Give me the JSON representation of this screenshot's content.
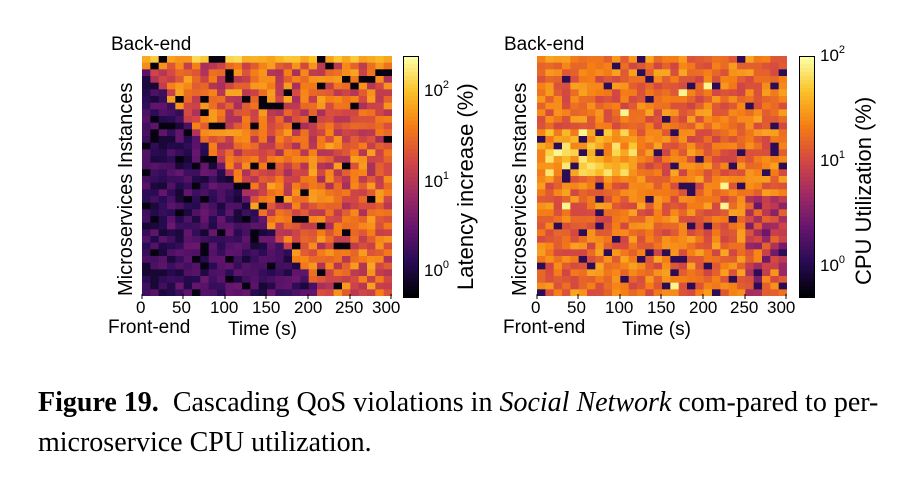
{
  "charts": [
    {
      "top_label": "Back-end",
      "bottom_label": "Front-end",
      "ylabel": "Microservices Instances",
      "xlabel": "Time (s)",
      "xticks": [
        "0",
        "50",
        "100",
        "150",
        "200",
        "250",
        "300"
      ],
      "colorbar_label": "Latency increase (%)",
      "colorbar_ticks": [
        {
          "base": "10",
          "exp": "2"
        },
        {
          "base": "10",
          "exp": "1"
        },
        {
          "base": "10",
          "exp": "0"
        }
      ]
    },
    {
      "top_label": "Back-end",
      "bottom_label": "Front-end",
      "ylabel": "Microservices Instances",
      "xlabel": "Time (s)",
      "xticks": [
        "0",
        "50",
        "100",
        "150",
        "200",
        "250",
        "300"
      ],
      "colorbar_label": "CPU Utilization (%)",
      "colorbar_ticks": [
        {
          "base": "10",
          "exp": "2"
        },
        {
          "base": "10",
          "exp": "1"
        },
        {
          "base": "10",
          "exp": "0"
        }
      ]
    }
  ],
  "caption": {
    "label": "Figure 19.",
    "text_before": "Cascading QoS violations in ",
    "italic": "Social Network",
    "text_after": " com-pared to per-microservice CPU utilization."
  },
  "chart_data": [
    {
      "type": "heatmap",
      "xlabel": "Time (s)",
      "ylabel": "Microservices Instances",
      "xlim": [
        0,
        300
      ],
      "colorbar_label": "Latency increase (%)",
      "colorbar_scale": "log",
      "colorbar_range": [
        0.5,
        250
      ],
      "rows_top_to_bottom": 36,
      "columns": 30,
      "colormap": "inferno"
    },
    {
      "type": "heatmap",
      "xlabel": "Time (s)",
      "ylabel": "Microservices Instances",
      "xlim": [
        0,
        300
      ],
      "colorbar_label": "CPU Utilization (%)",
      "colorbar_scale": "log",
      "colorbar_range": [
        0.5,
        100
      ],
      "rows_top_to_bottom": 36,
      "columns": 30,
      "colormap": "inferno"
    }
  ]
}
